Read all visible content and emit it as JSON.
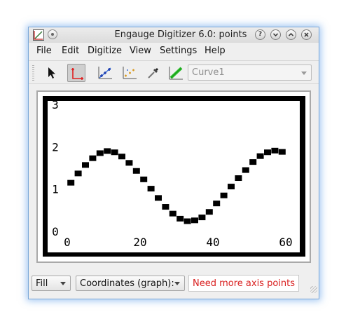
{
  "window": {
    "title": "Engauge Digitizer 6.0: points",
    "app_icon": "engauge-app-icon",
    "title_buttons": [
      "help-icon",
      "minimize-icon",
      "maximize-icon",
      "close-icon"
    ]
  },
  "menu": {
    "items": [
      "File",
      "Edit",
      "Digitize",
      "View",
      "Settings",
      "Help"
    ]
  },
  "toolbar": {
    "tools": [
      "select-arrow-icon",
      "axis-point-icon",
      "curve-point-icon",
      "point-match-icon",
      "color-picker-icon",
      "segment-fill-icon"
    ],
    "curve_select": "Curve1"
  },
  "colors": {
    "accent": "#3b6fd6",
    "axis_point": "#e02020",
    "segment_fill": "#28c028",
    "status_error": "#d92020"
  },
  "plot_image": {
    "y_ticks": [
      "3",
      "2",
      "1",
      "0"
    ],
    "x_ticks": [
      "0",
      "20",
      "40",
      "60"
    ]
  },
  "chart_data": {
    "type": "scatter",
    "title": "",
    "xlabel": "",
    "ylabel": "",
    "xlim": [
      0,
      62
    ],
    "ylim": [
      0,
      3
    ],
    "x": [
      1,
      3,
      5,
      7,
      9,
      11,
      13,
      15,
      17,
      19,
      21,
      23,
      25,
      27,
      29,
      31,
      33,
      35,
      37,
      39,
      41,
      43,
      45,
      47,
      49,
      51,
      53,
      55,
      57,
      59
    ],
    "y": [
      1.15,
      1.37,
      1.57,
      1.73,
      1.85,
      1.9,
      1.87,
      1.77,
      1.62,
      1.43,
      1.23,
      1.01,
      0.79,
      0.58,
      0.42,
      0.3,
      0.24,
      0.26,
      0.33,
      0.46,
      0.66,
      0.85,
      1.06,
      1.26,
      1.45,
      1.64,
      1.78,
      1.87,
      1.91,
      1.88
    ]
  },
  "status": {
    "fill_mode": "Fill",
    "coordinates": "Coordinates (graph):",
    "message": "Need more axis points"
  }
}
